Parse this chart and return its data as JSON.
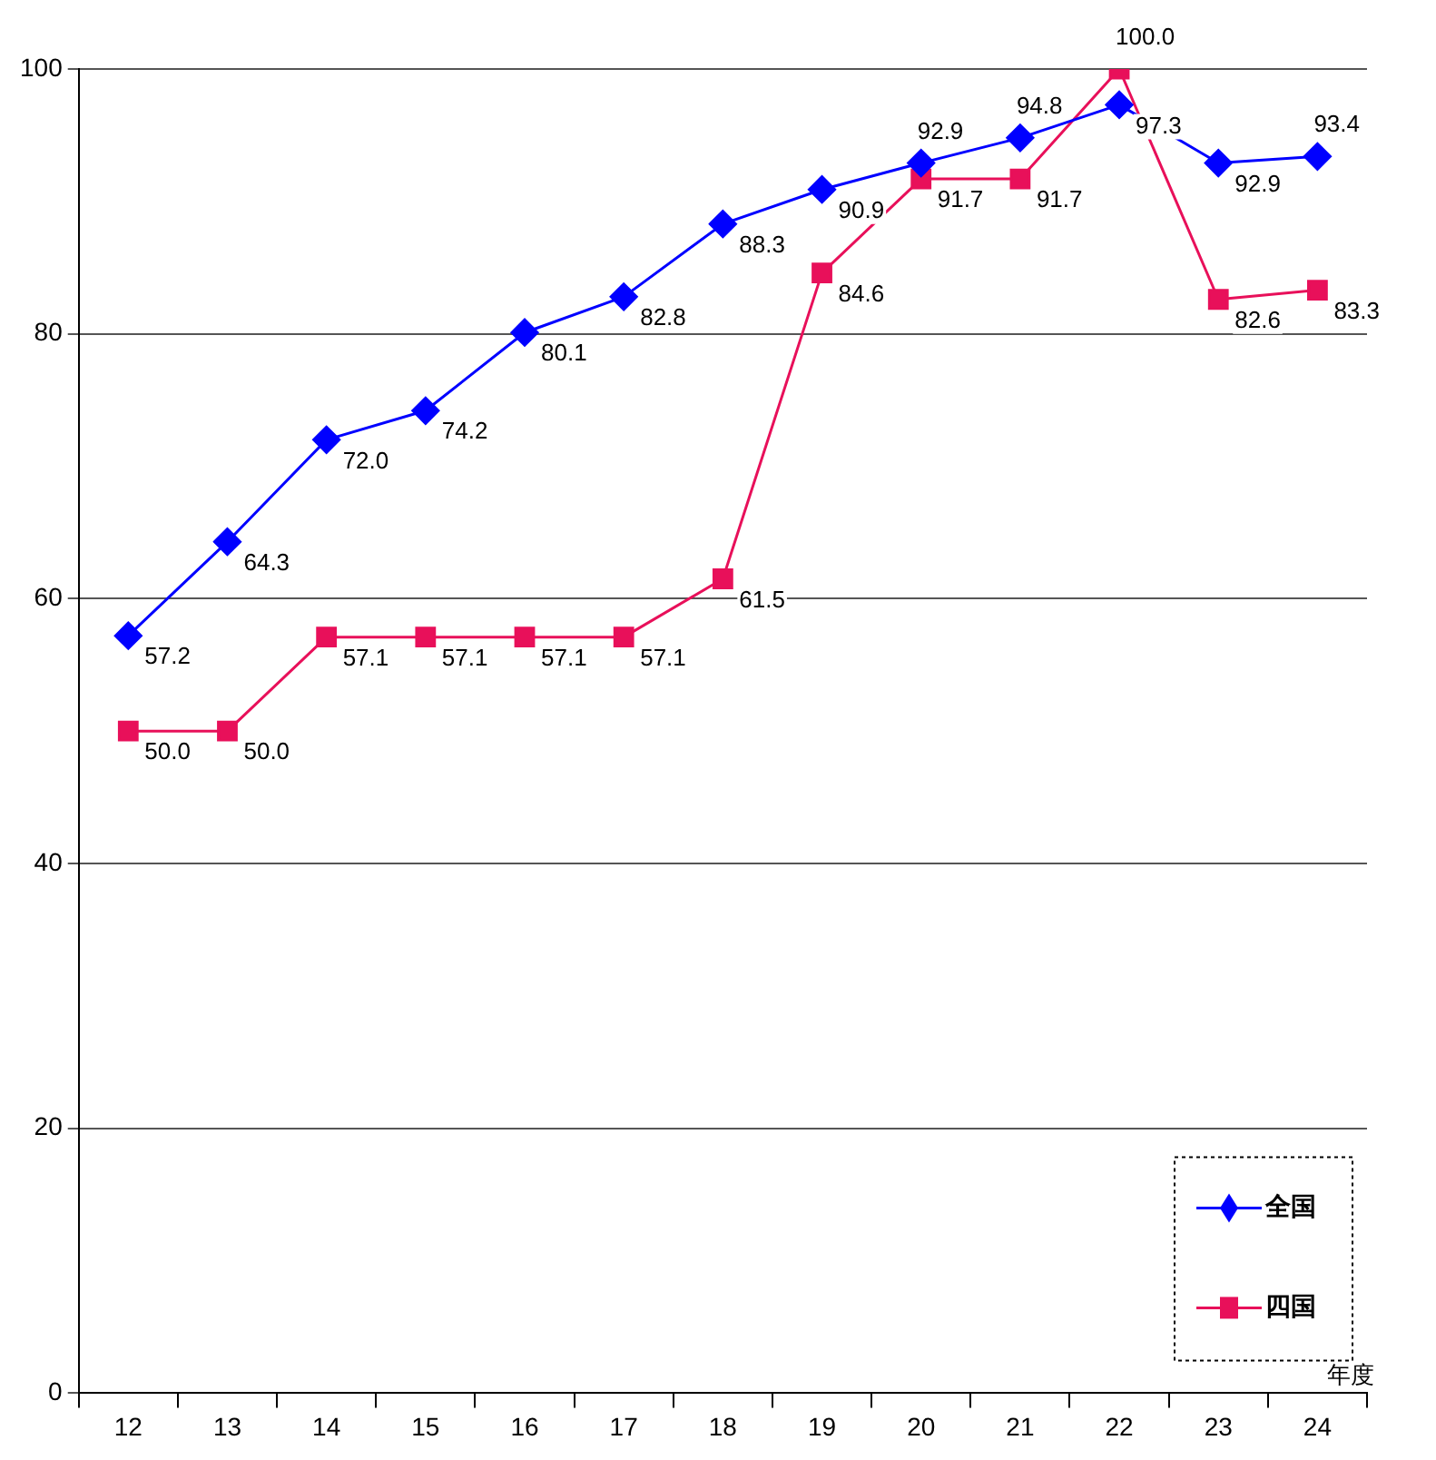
{
  "chart_data": {
    "type": "line",
    "xlabel": "年度",
    "categories": [
      "12",
      "13",
      "14",
      "15",
      "16",
      "17",
      "18",
      "19",
      "20",
      "21",
      "22",
      "23",
      "24"
    ],
    "series": [
      {
        "name": "全国",
        "color": "#0000ff",
        "marker": "diamond",
        "values": [
          57.2,
          64.3,
          72.0,
          74.2,
          80.1,
          82.8,
          88.3,
          90.9,
          92.9,
          94.8,
          97.3,
          92.9,
          93.4
        ],
        "value_labels": [
          "57.2",
          "64.3",
          "72.0",
          "74.2",
          "80.1",
          "82.8",
          "88.3",
          "90.9",
          "92.9",
          "94.8",
          "97.3",
          "92.9",
          "93.4"
        ]
      },
      {
        "name": "四国",
        "color": "#e8105a",
        "marker": "square",
        "values": [
          50.0,
          50.0,
          57.1,
          57.1,
          57.1,
          57.1,
          61.5,
          84.6,
          91.7,
          91.7,
          100.0,
          82.6,
          83.3
        ],
        "value_labels": [
          "50.0",
          "50.0",
          "57.1",
          "57.1",
          "57.1",
          "57.1",
          "61.5",
          "84.6",
          "91.7",
          "91.7",
          "100.0",
          "82.6",
          "83.3"
        ]
      }
    ],
    "ylim": [
      0,
      100
    ],
    "yticks": [
      0,
      20,
      40,
      60,
      80,
      100
    ],
    "grid": "y",
    "legend": "bottom right",
    "line_style": "solid"
  }
}
